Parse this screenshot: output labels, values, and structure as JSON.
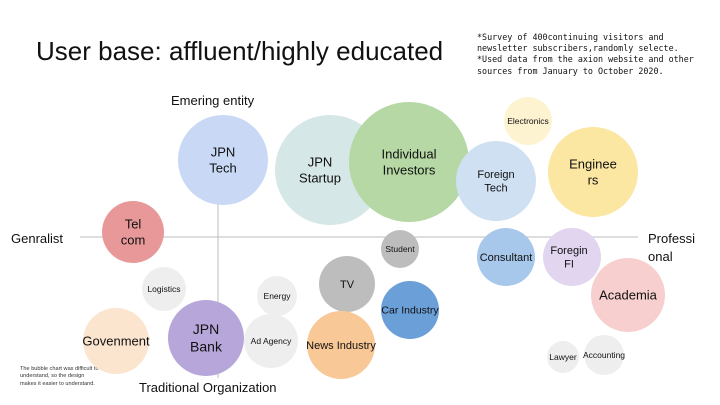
{
  "title": "User base: affluent/highly educated",
  "notes": "*Survey of 400continuing visitors and newsletter subscribers,randomly selecte.\n*Used data from the axion website and other sources from January to October 2020.",
  "footnote": "The bubble chart was difficult to understand, so the design makes it easier to understand.",
  "axes": {
    "top": "Emering entity",
    "bottom": "Traditional Organization",
    "left": "Genralist",
    "right_lines": [
      "Professi",
      "onal"
    ]
  },
  "colors": {
    "blue_light": "#c9d9f5",
    "teal_light": "#d5e7e6",
    "green": "#b5d8a4",
    "yellow_light": "#fdf3d0",
    "yellow": "#fbe6a2",
    "blue_foreign": "#cfe0f2",
    "blue_consultant": "#a7c7eb",
    "purple_light": "#e1d5f0",
    "pink": "#f7cfcf",
    "red": "#e89898",
    "peach": "#fbe5ce",
    "purple": "#b7a6da",
    "gray_light": "#eeeeee",
    "gray": "#bdbdbd",
    "blue_strong": "#6a9fd8",
    "orange": "#f9c897"
  },
  "bubbles": [
    {
      "id": "jpn-tech",
      "lines": [
        "JPN",
        "Tech"
      ],
      "color": "blue_light",
      "fs": 13
    },
    {
      "id": "jpn-startup",
      "lines": [
        "JPN",
        "Startup"
      ],
      "color": "teal_light",
      "fs": 13
    },
    {
      "id": "individual-investors",
      "lines": [
        "Individual",
        "Investors"
      ],
      "color": "green",
      "fs": 13
    },
    {
      "id": "electronics",
      "lines": [
        "Electronics"
      ],
      "color": "yellow_light",
      "fs": 8.5
    },
    {
      "id": "engineers",
      "lines": [
        "Enginee",
        "rs"
      ],
      "color": "yellow",
      "fs": 13
    },
    {
      "id": "foreign-tech",
      "lines": [
        "Foreign",
        "Tech"
      ],
      "color": "blue_foreign",
      "fs": 11
    },
    {
      "id": "consultant",
      "lines": [
        "Consultant"
      ],
      "color": "blue_consultant",
      "fs": 11
    },
    {
      "id": "foreign-fi",
      "lines": [
        "Foregin",
        "FI"
      ],
      "color": "purple_light",
      "fs": 11
    },
    {
      "id": "academia",
      "lines": [
        "Academia"
      ],
      "color": "pink",
      "fs": 13
    },
    {
      "id": "telcom",
      "lines": [
        "Tel",
        "com"
      ],
      "color": "red",
      "fs": 13
    },
    {
      "id": "govenment",
      "lines": [
        "Govenment"
      ],
      "color": "peach",
      "fs": 13
    },
    {
      "id": "jpn-bank",
      "lines": [
        "JPN",
        "Bank"
      ],
      "color": "purple",
      "fs": 14
    },
    {
      "id": "logistics",
      "lines": [
        "Logistics"
      ],
      "color": "gray_light",
      "fs": 8.5
    },
    {
      "id": "energy",
      "lines": [
        "Energy"
      ],
      "color": "gray_light",
      "fs": 8.5
    },
    {
      "id": "ad-agency",
      "lines": [
        "Ad Agency"
      ],
      "color": "gray_light",
      "fs": 8.5
    },
    {
      "id": "tv",
      "lines": [
        "TV"
      ],
      "color": "gray",
      "fs": 11
    },
    {
      "id": "student",
      "lines": [
        "Student"
      ],
      "color": "gray",
      "fs": 8.5
    },
    {
      "id": "car-industry",
      "lines": [
        "Car Industry"
      ],
      "color": "blue_strong",
      "fs": 10.5
    },
    {
      "id": "news-industry",
      "lines": [
        "News Industry"
      ],
      "color": "orange",
      "fs": 11
    },
    {
      "id": "lawyer",
      "lines": [
        "Lawyer"
      ],
      "color": "gray_light",
      "fs": 8.5
    },
    {
      "id": "accounting",
      "lines": [
        "Accounting"
      ],
      "color": "gray_light",
      "fs": 8.5
    }
  ]
}
